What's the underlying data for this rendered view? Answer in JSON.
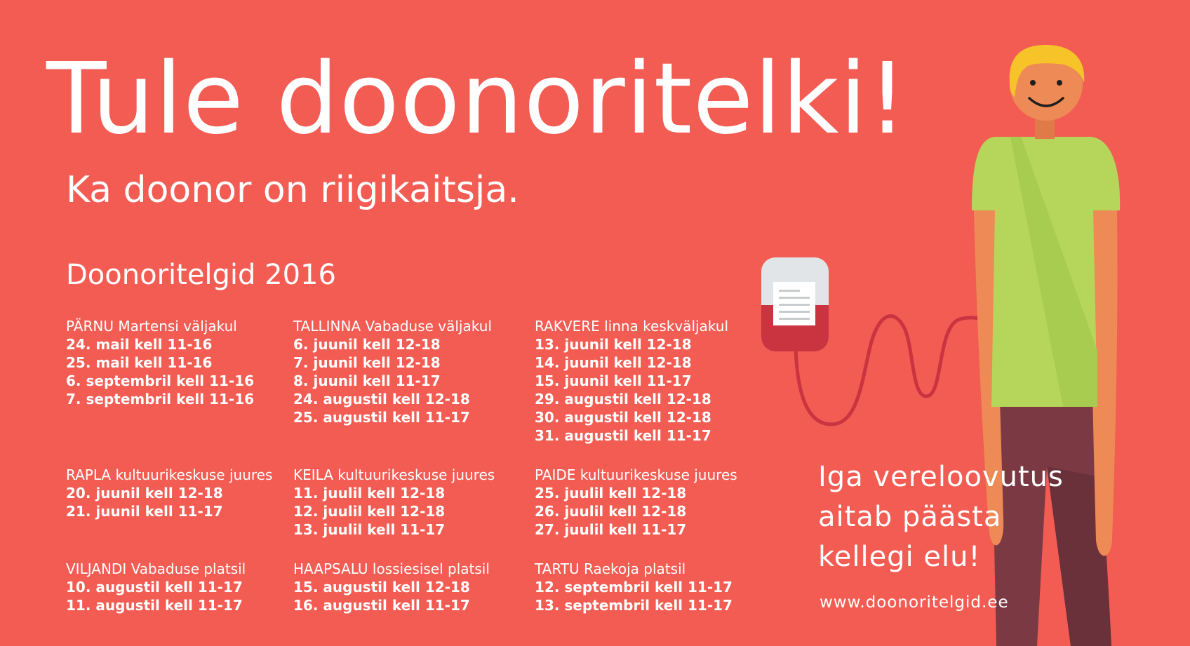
{
  "colors": {
    "background": "#f25c53",
    "text": "#ffffff",
    "shirt": "#b5d65a",
    "skin": "#ee8a55",
    "hair": "#f6c428",
    "pants": "#7b3a43",
    "blood": "#c93440",
    "bag_top": "#e2e5e7"
  },
  "headline": "Tule doonoritelki!",
  "subtitle": "Ka doonor on riigikaitsja.",
  "section_title": "Doonoritelgid 2016",
  "events": [
    {
      "place": "PÄRNU Martensi väljakul",
      "dates": [
        "24. mail kell 11-16",
        "25. mail kell 11-16",
        "6. septembril kell 11-16",
        "7. septembril kell 11-16"
      ]
    },
    {
      "place": "TALLINNA Vabaduse väljakul",
      "dates": [
        "6. juunil kell 12-18",
        "7. juunil kell 12-18",
        "8. juunil kell 11-17",
        "24. augustil kell 12-18",
        "25. augustil kell 11-17"
      ]
    },
    {
      "place": "RAKVERE linna keskväljakul",
      "dates": [
        "13. juunil kell 12-18",
        "14. juunil kell 12-18",
        "15. juunil kell 11-17",
        "29. augustil kell 12-18",
        "30. augustil kell 12-18",
        "31. augustil kell 11-17"
      ]
    },
    {
      "place": "RAPLA kultuurikeskuse juures",
      "dates": [
        "20. juunil kell 12-18",
        "21. juunil kell 11-17"
      ]
    },
    {
      "place": "KEILA kultuurikeskuse juures",
      "dates": [
        "11. juulil kell 12-18",
        "12. juulil kell 12-18",
        "13. juulil kell 11-17"
      ]
    },
    {
      "place": "PAIDE kultuurikeskuse juures",
      "dates": [
        "25. juulil kell 12-18",
        "26. juulil kell 12-18",
        "27. juulil kell 11-17"
      ]
    },
    {
      "place": "VILJANDI Vabaduse platsil",
      "dates": [
        "10. augustil kell 11-17",
        "11. augustil kell 11-17"
      ]
    },
    {
      "place": "HAAPSALU lossiesisel platsil",
      "dates": [
        "15. augustil kell 12-18",
        "16. augustil kell 11-17"
      ]
    },
    {
      "place": "TARTU Raekoja platsil",
      "dates": [
        "12. septembril kell 11-17",
        "13. septembril kell 11-17"
      ]
    }
  ],
  "tagline": [
    "Iga vereloovutus",
    "aitab päästa",
    "kellegi elu!"
  ],
  "website": "www.doonoritelgid.ee",
  "illustration": {
    "figure": "smiling-person-figure",
    "bag": "blood-bag-icon"
  }
}
